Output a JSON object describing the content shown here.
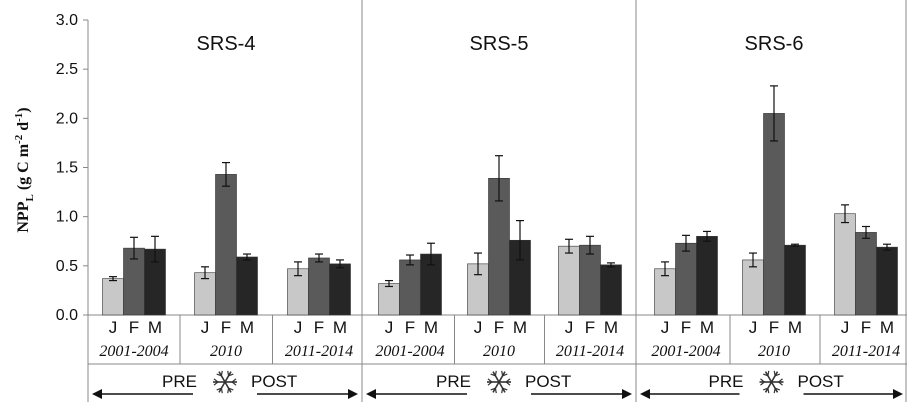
{
  "chart_data": {
    "type": "bar",
    "ylabel": "NPP_L (g C m-2 d-1)",
    "ylabel_parts": {
      "main": "NPP",
      "sub": "L",
      "rest1": " (g C m",
      "sup1": "-2",
      "rest2": " d",
      "sup2": "-1",
      "rest3": ")"
    },
    "ylim": [
      0,
      3.0
    ],
    "yticks": [
      "0.0",
      "0.5",
      "1.0",
      "1.5",
      "2.0",
      "2.5",
      "3.0"
    ],
    "grid": false,
    "series_keys": [
      "J",
      "F",
      "M"
    ],
    "colors": {
      "J": "#c8c8c8",
      "F": "#5a5a5a",
      "M": "#262626"
    },
    "arrow": {
      "left": "PRE",
      "right": "POST",
      "icon": "snowflake-icon"
    },
    "panels": [
      {
        "title": "SRS-4",
        "groups": [
          {
            "period": "2001-2004",
            "values": [
              0.37,
              0.68,
              0.67
            ],
            "errors": [
              0.02,
              0.11,
              0.13
            ]
          },
          {
            "period": "2010",
            "values": [
              0.43,
              1.43,
              0.59
            ],
            "errors": [
              0.06,
              0.12,
              0.03
            ]
          },
          {
            "period": "2011-2014",
            "values": [
              0.47,
              0.58,
              0.52
            ],
            "errors": [
              0.07,
              0.04,
              0.04
            ]
          }
        ]
      },
      {
        "title": "SRS-5",
        "groups": [
          {
            "period": "2001-2004",
            "values": [
              0.32,
              0.56,
              0.62
            ],
            "errors": [
              0.03,
              0.05,
              0.11
            ]
          },
          {
            "period": "2010",
            "values": [
              0.52,
              1.39,
              0.76
            ],
            "errors": [
              0.11,
              0.23,
              0.2
            ]
          },
          {
            "period": "2011-2014",
            "values": [
              0.7,
              0.71,
              0.51
            ],
            "errors": [
              0.07,
              0.09,
              0.02
            ]
          }
        ]
      },
      {
        "title": "SRS-6",
        "groups": [
          {
            "period": "2001-2004",
            "values": [
              0.47,
              0.73,
              0.8
            ],
            "errors": [
              0.07,
              0.08,
              0.05
            ]
          },
          {
            "period": "2010",
            "values": [
              0.56,
              2.05,
              0.71
            ],
            "errors": [
              0.07,
              0.28,
              0.01
            ]
          },
          {
            "period": "2011-2014",
            "values": [
              1.03,
              0.84,
              0.69
            ],
            "errors": [
              0.09,
              0.06,
              0.03
            ]
          }
        ]
      }
    ]
  }
}
